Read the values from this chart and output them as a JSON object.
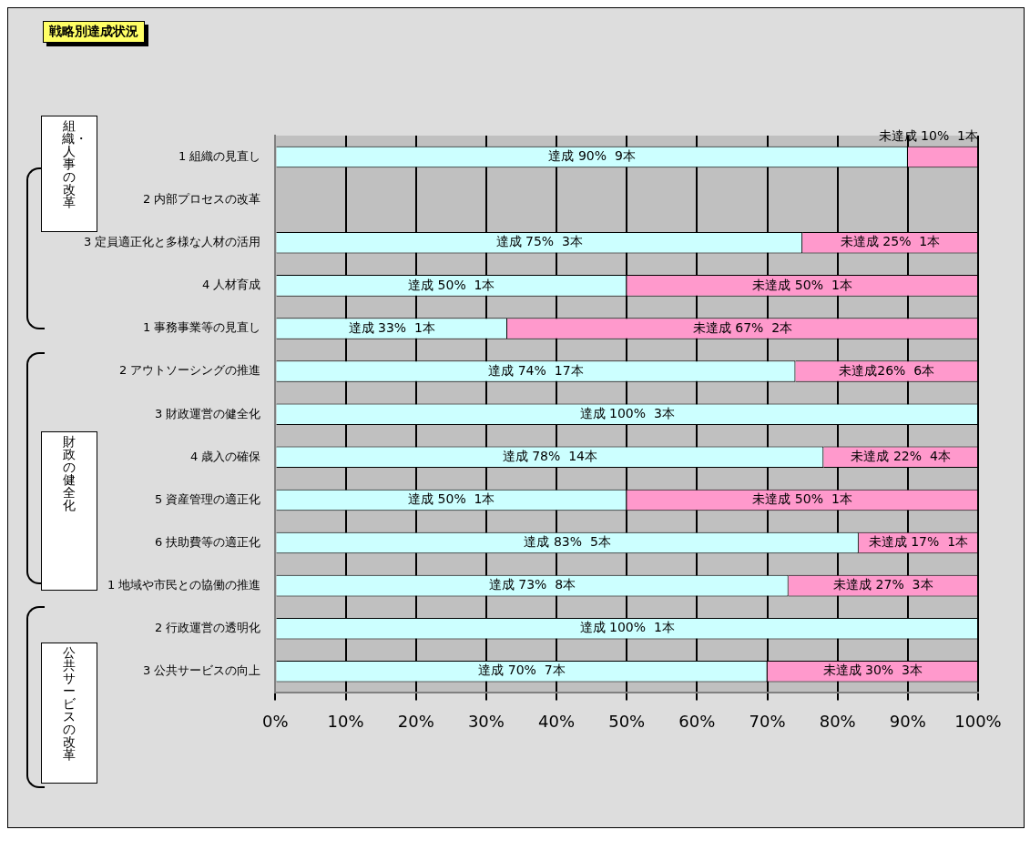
{
  "chart_data": {
    "type": "bar",
    "title": "戦略別達成状況",
    "orientation": "horizontal",
    "stacked": true,
    "categories": [
      "1 組織の見直し",
      "2 内部プロセスの改革",
      "3 定員適正化と多様な人材の活用",
      "4 人材育成",
      "1 事務事業等の見直し",
      "2 アウトソーシングの推進",
      "3 財政運営の健全化",
      "4 歳入の確保",
      "5 資産管理の適正化",
      "6 扶助費等の適正化",
      "1 地域や市民との協働の推進",
      "2 行政運営の透明化",
      "3 公共サービスの向上"
    ],
    "series": [
      {
        "color": "#ccffff",
        "values": [
          90,
          null,
          75,
          50,
          33,
          74,
          100,
          78,
          50,
          83,
          73,
          100,
          70
        ],
        "value_labels": [
          "達成 90%  9本",
          null,
          "達成 75%  3本",
          "達成 50%  1本",
          "達成 33%  1本",
          "達成 74%  17本",
          "達成 100%  3本",
          "達成 78%  14本",
          "達成 50%  1本",
          "達成 83%  5本",
          "達成 73%  8本",
          "達成 100%  1本",
          "達成 70%  7本"
        ]
      },
      {
        "color": "#ff99cc",
        "values": [
          10,
          null,
          25,
          50,
          67,
          26,
          null,
          22,
          50,
          17,
          27,
          null,
          30
        ],
        "value_labels": [
          "未達成 10%  1本",
          null,
          "未達成 25%  1本",
          "未達成 50%  1本",
          "未達成 67%  2本",
          "未達成26%  6本",
          null,
          "未達成 22%  4本",
          "未達成 50%  1本",
          "未達成 17%  1本",
          "未達成 27%  3本",
          null,
          "未達成 30%  3本"
        ]
      }
    ],
    "xlim": [
      0,
      100
    ],
    "xticks": [
      {
        "value": 0,
        "label": "0%"
      },
      {
        "value": 10,
        "label": "10%"
      },
      {
        "value": 20,
        "label": "20%"
      },
      {
        "value": 30,
        "label": "30%"
      },
      {
        "value": 40,
        "label": "40%"
      },
      {
        "value": 50,
        "label": "50%"
      },
      {
        "value": 60,
        "label": "60%"
      },
      {
        "value": 70,
        "label": "70%"
      },
      {
        "value": 80,
        "label": "80%"
      },
      {
        "value": 90,
        "label": "90%"
      },
      {
        "value": 100,
        "label": "100%"
      }
    ],
    "grid": "x",
    "legend": false,
    "annotations": [
      "組織・人事の改革",
      "財政の健全化",
      "公共サービスの改革"
    ]
  }
}
